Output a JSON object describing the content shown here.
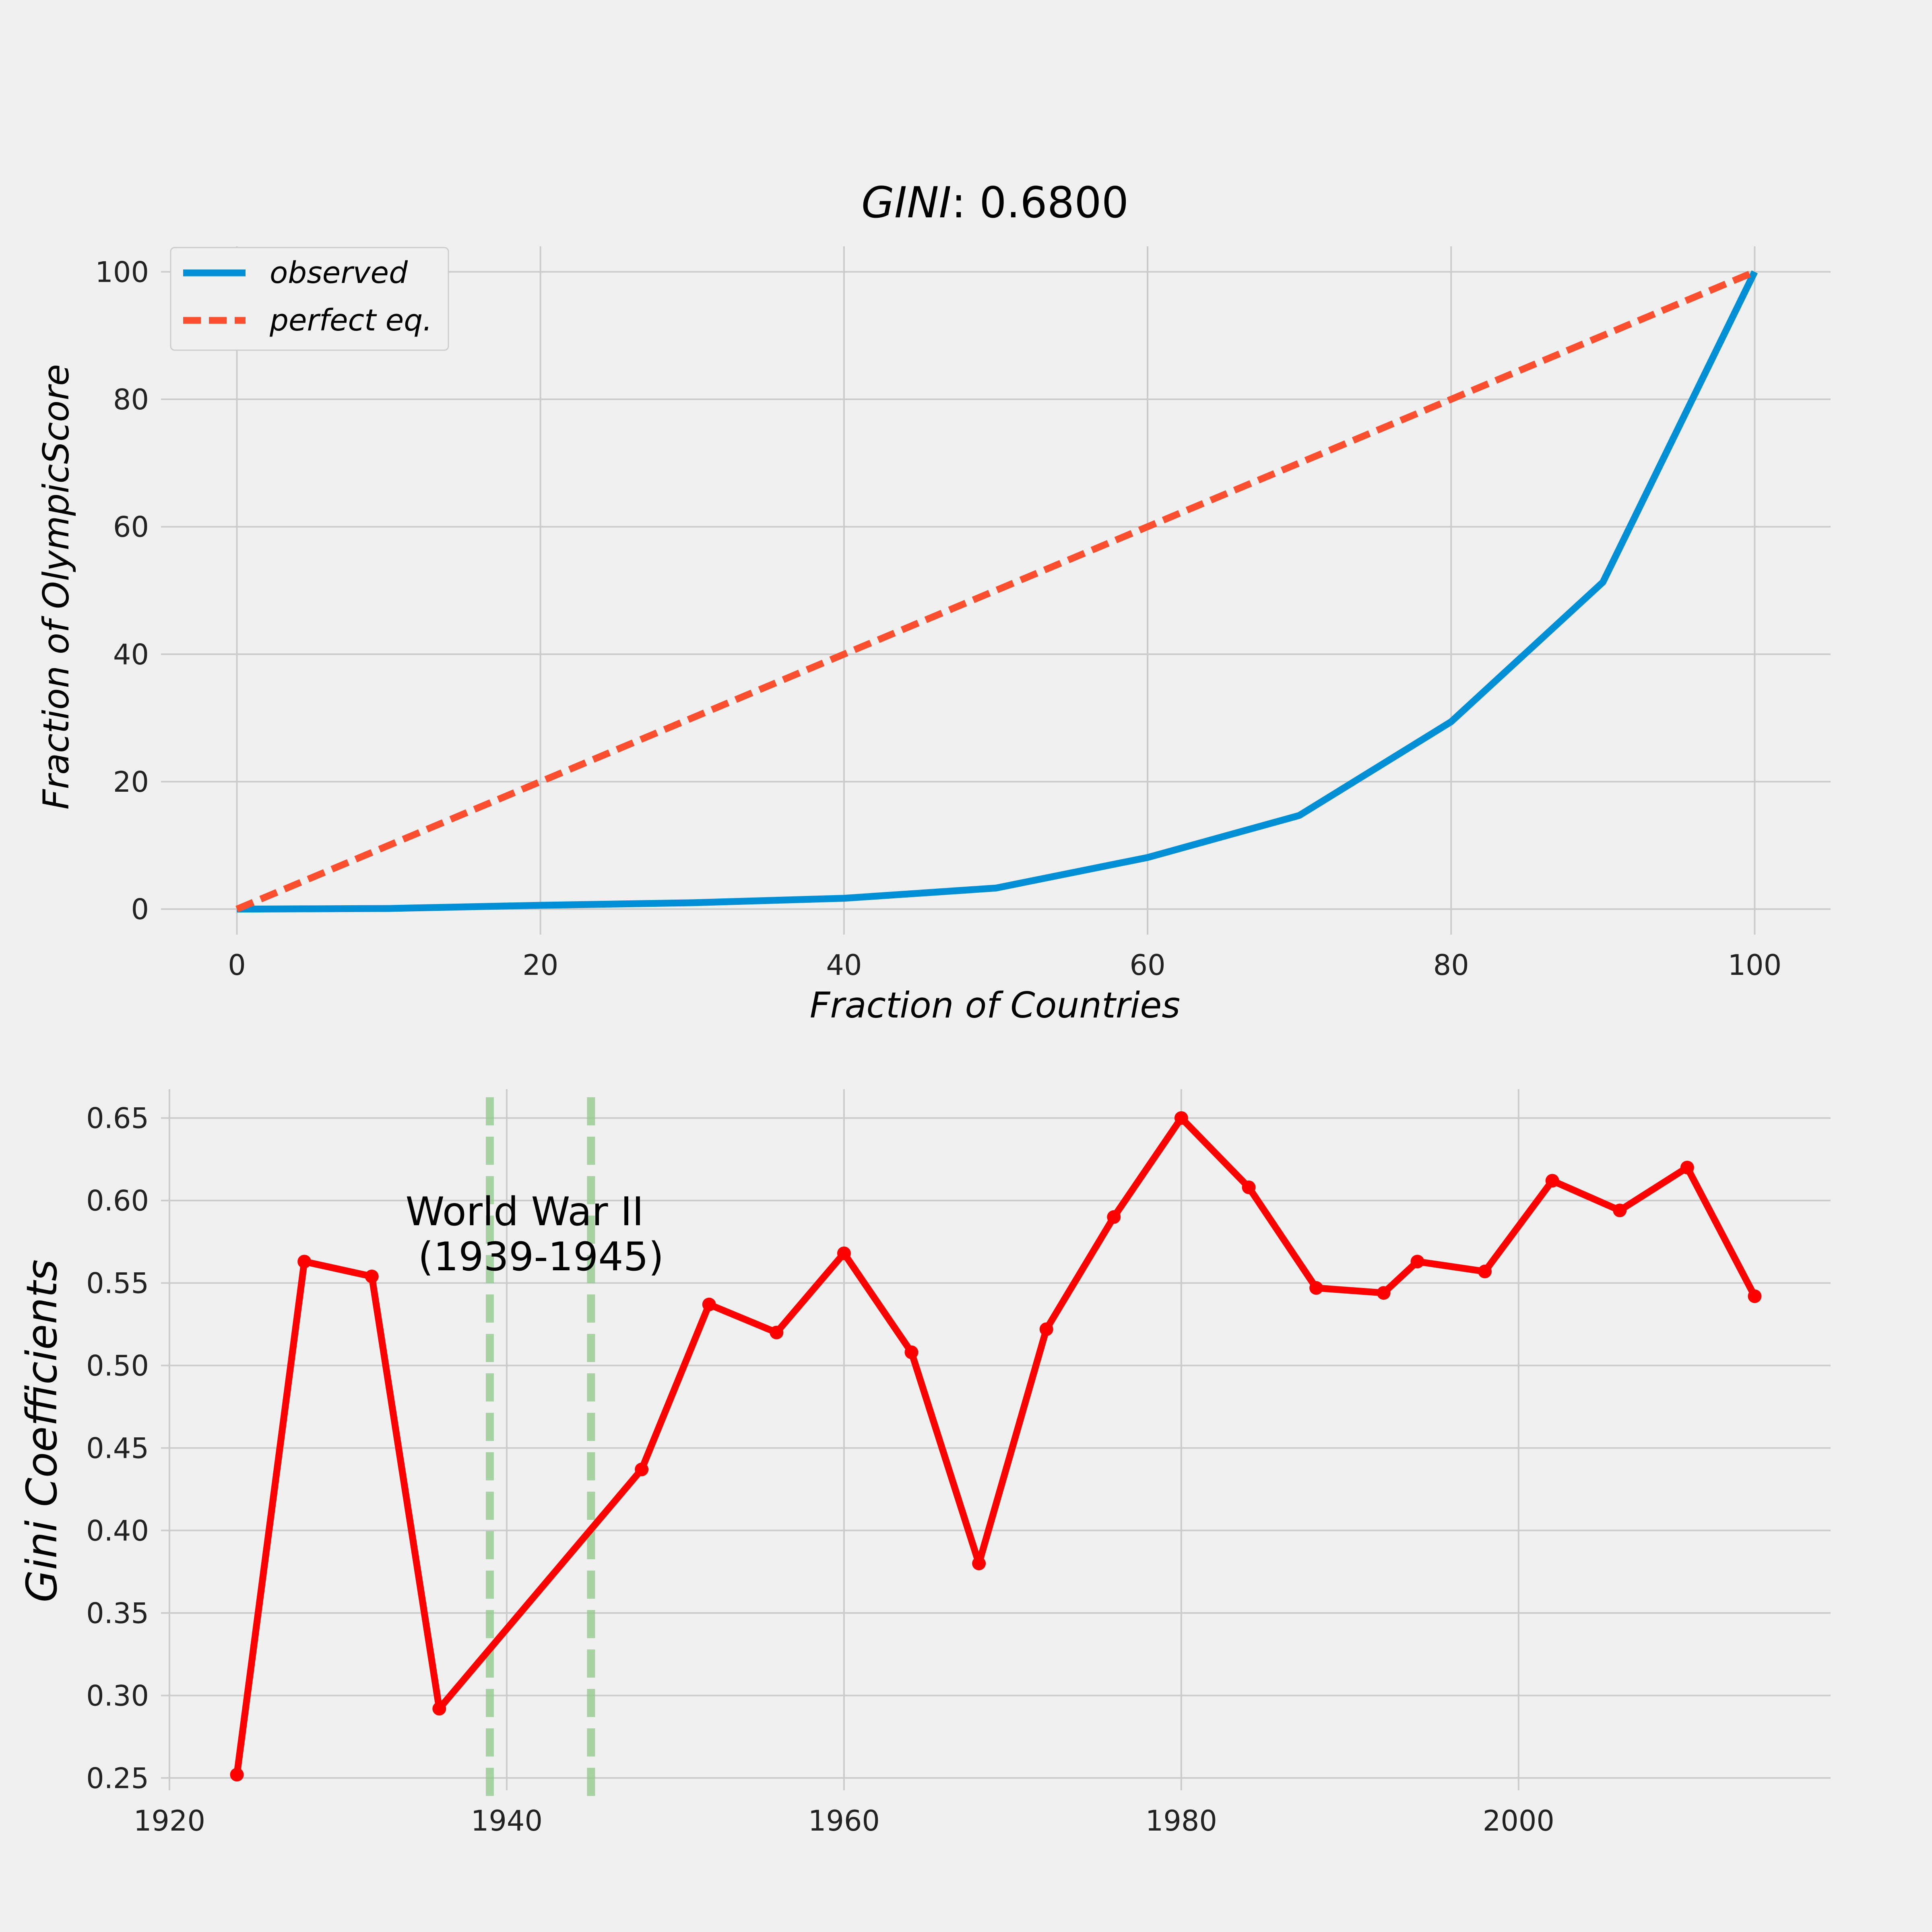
{
  "chart_data": [
    {
      "type": "line",
      "title_italic": "GINI",
      "title_rest": ": 0.6800",
      "xlabel": "Fraction of Countries",
      "ylabel": "Fraction of OlympicScore",
      "xlim": [
        -5,
        105
      ],
      "ylim": [
        -4,
        104
      ],
      "xticks": [
        0,
        20,
        40,
        60,
        80,
        100
      ],
      "yticks": [
        0,
        20,
        40,
        60,
        80,
        100
      ],
      "grid": true,
      "legend_position": "top-left",
      "series": [
        {
          "name": "observed",
          "color": "#008fd5",
          "dash": "solid",
          "x": [
            0,
            10,
            20,
            30,
            40,
            50,
            60,
            70,
            80,
            90,
            100
          ],
          "y": [
            0,
            0.1,
            0.6,
            1.0,
            1.7,
            3.3,
            8.1,
            14.7,
            29.4,
            51.3,
            100
          ]
        },
        {
          "name": "perfect eq.",
          "color": "#fc4f30",
          "dash": "dashed",
          "x": [
            0,
            100
          ],
          "y": [
            0,
            100
          ]
        }
      ]
    },
    {
      "type": "line",
      "xlabel": "",
      "ylabel": "Gini Coefficients",
      "xlim": [
        1919.5,
        2018.5
      ],
      "ylim": [
        0.2425,
        0.6675
      ],
      "xticks": [
        1920,
        1940,
        1960,
        1980,
        2000
      ],
      "yticks": [
        0.25,
        0.3,
        0.35,
        0.4,
        0.45,
        0.5,
        0.55,
        0.6,
        0.65
      ],
      "grid": true,
      "series": [
        {
          "name": "",
          "color": "#ff0000",
          "marker": "circle",
          "x": [
            1924,
            1928,
            1932,
            1936,
            1948,
            1952,
            1956,
            1960,
            1964,
            1968,
            1972,
            1976,
            1980,
            1984,
            1988,
            1992,
            1994,
            1998,
            2002,
            2006,
            2010,
            2014
          ],
          "y": [
            0.252,
            0.563,
            0.554,
            0.292,
            0.437,
            0.537,
            0.52,
            0.568,
            0.508,
            0.38,
            0.522,
            0.59,
            0.65,
            0.608,
            0.547,
            0.544,
            0.563,
            0.557,
            0.612,
            0.594,
            0.62,
            0.542
          ]
        }
      ],
      "vlines": [
        {
          "x": 1939,
          "color": "#8fc98a",
          "dash": "dashed"
        },
        {
          "x": 1945,
          "color": "#8fc98a",
          "dash": "dashed"
        }
      ],
      "annotation": {
        "line1": "World War II",
        "line2": " (1939-1945)",
        "x": 1934,
        "y": 0.585
      }
    }
  ]
}
